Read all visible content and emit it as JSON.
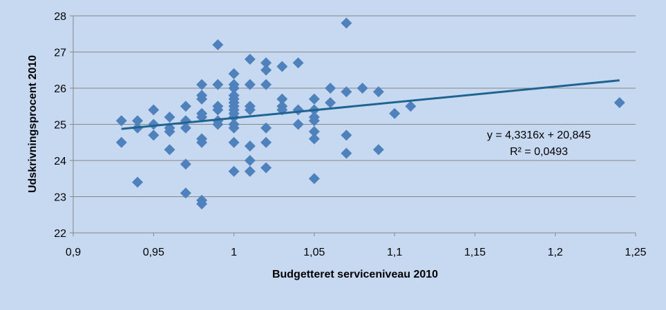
{
  "chart_data": {
    "type": "scatter",
    "title": "",
    "xlabel": "Budgetteret serviceniveau 2010",
    "ylabel": "Udskrivningsprocent 2010",
    "xlim": [
      0.9,
      1.25
    ],
    "ylim": [
      22,
      28
    ],
    "x_ticks": [
      "0,9",
      "0,95",
      "1",
      "1,05",
      "1,1",
      "1,15",
      "1,2",
      "1,25"
    ],
    "y_ticks": [
      "22",
      "23",
      "24",
      "25",
      "26",
      "27",
      "28"
    ],
    "grid": "horizontal",
    "marker_color": "#4f81bd",
    "trendline_color": "#1f6391",
    "trendline": {
      "slope": 4.3316,
      "intercept": 20.845,
      "x_range": [
        0.93,
        1.24
      ],
      "equation_label": "y = 4,3316x + 20,845",
      "r2_label": "R² = 0,0493"
    },
    "points": [
      [
        0.93,
        25.1
      ],
      [
        0.93,
        24.5
      ],
      [
        0.94,
        25.1
      ],
      [
        0.94,
        24.9
      ],
      [
        0.94,
        23.4
      ],
      [
        0.95,
        25.4
      ],
      [
        0.95,
        25.0
      ],
      [
        0.95,
        24.7
      ],
      [
        0.96,
        25.2
      ],
      [
        0.96,
        24.9
      ],
      [
        0.96,
        24.8
      ],
      [
        0.96,
        24.3
      ],
      [
        0.97,
        25.5
      ],
      [
        0.97,
        25.1
      ],
      [
        0.97,
        24.9
      ],
      [
        0.97,
        23.9
      ],
      [
        0.97,
        23.1
      ],
      [
        0.98,
        26.1
      ],
      [
        0.98,
        25.8
      ],
      [
        0.98,
        25.7
      ],
      [
        0.98,
        25.3
      ],
      [
        0.98,
        25.2
      ],
      [
        0.98,
        24.6
      ],
      [
        0.98,
        24.5
      ],
      [
        0.98,
        22.9
      ],
      [
        0.98,
        22.8
      ],
      [
        0.99,
        27.2
      ],
      [
        0.99,
        26.1
      ],
      [
        0.99,
        25.5
      ],
      [
        0.99,
        25.4
      ],
      [
        0.99,
        25.1
      ],
      [
        0.99,
        25.0
      ],
      [
        1.0,
        26.4
      ],
      [
        1.0,
        26.1
      ],
      [
        1.0,
        26.0
      ],
      [
        1.0,
        25.8
      ],
      [
        1.0,
        25.7
      ],
      [
        1.0,
        25.6
      ],
      [
        1.0,
        25.5
      ],
      [
        1.0,
        25.4
      ],
      [
        1.0,
        25.3
      ],
      [
        1.0,
        25.2
      ],
      [
        1.0,
        25.0
      ],
      [
        1.0,
        24.9
      ],
      [
        1.0,
        24.5
      ],
      [
        1.0,
        23.7
      ],
      [
        1.01,
        26.8
      ],
      [
        1.01,
        26.1
      ],
      [
        1.01,
        25.5
      ],
      [
        1.01,
        25.4
      ],
      [
        1.01,
        24.4
      ],
      [
        1.01,
        24.0
      ],
      [
        1.01,
        23.7
      ],
      [
        1.02,
        26.7
      ],
      [
        1.02,
        26.5
      ],
      [
        1.02,
        26.1
      ],
      [
        1.02,
        24.9
      ],
      [
        1.02,
        24.5
      ],
      [
        1.02,
        23.8
      ],
      [
        1.03,
        26.6
      ],
      [
        1.03,
        25.7
      ],
      [
        1.03,
        25.5
      ],
      [
        1.03,
        25.4
      ],
      [
        1.04,
        26.7
      ],
      [
        1.04,
        25.4
      ],
      [
        1.04,
        25.0
      ],
      [
        1.05,
        25.7
      ],
      [
        1.05,
        25.4
      ],
      [
        1.05,
        25.2
      ],
      [
        1.05,
        25.1
      ],
      [
        1.05,
        24.8
      ],
      [
        1.05,
        24.6
      ],
      [
        1.05,
        23.5
      ],
      [
        1.06,
        26.0
      ],
      [
        1.06,
        25.6
      ],
      [
        1.07,
        27.8
      ],
      [
        1.07,
        25.9
      ],
      [
        1.07,
        24.7
      ],
      [
        1.07,
        24.2
      ],
      [
        1.08,
        26.0
      ],
      [
        1.09,
        25.9
      ],
      [
        1.09,
        24.3
      ],
      [
        1.1,
        25.3
      ],
      [
        1.11,
        25.5
      ],
      [
        1.24,
        25.6
      ]
    ]
  }
}
